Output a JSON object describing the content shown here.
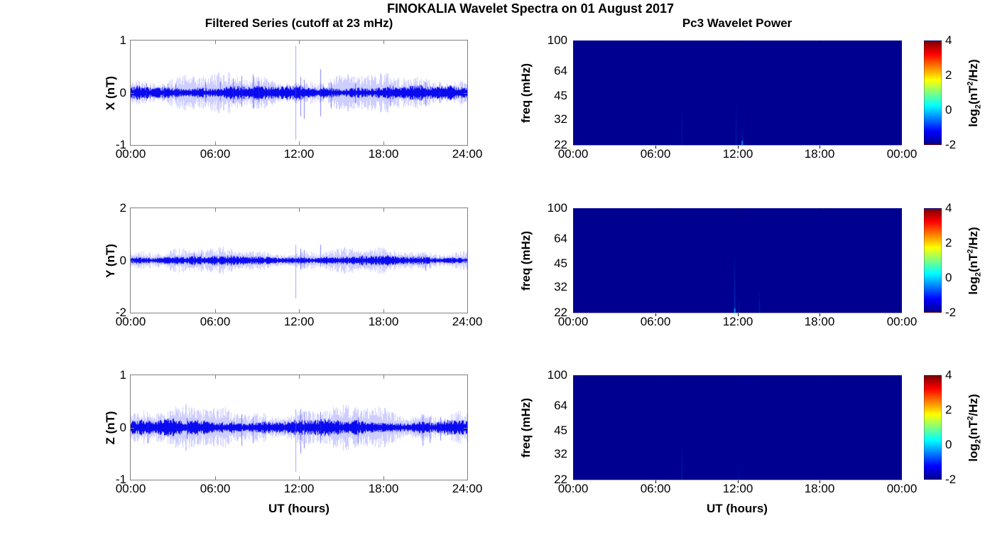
{
  "figure": {
    "main_title": "FINOKALIA Wavelet Spectra on 01 August 2017",
    "left_title": "Filtered Series (cutoff at 23 mHz)",
    "right_title": "Pc3 Wavelet Power",
    "xlabel": "UT (hours)",
    "colors": {
      "background": "#ffffff",
      "axis_box": "#808080",
      "series_line": "#0000ee",
      "spectrogram_base": "#000090",
      "jet_stops": [
        [
          "0%",
          "#000090"
        ],
        [
          "12.5%",
          "#0000ff"
        ],
        [
          "37.5%",
          "#00ffff"
        ],
        [
          "62.5%",
          "#ffff00"
        ],
        [
          "87.5%",
          "#ff0000"
        ],
        [
          "100%",
          "#800000"
        ]
      ]
    }
  },
  "chart_data": [
    {
      "type": "line",
      "component": "X",
      "title": "Filtered Series (cutoff at 23 mHz)",
      "ylabel": "X (nT)",
      "xlabel": "UT (hours)",
      "ylim": [
        -1,
        1
      ],
      "yticks": [
        1,
        0,
        -1
      ],
      "x_tick_labels": [
        "00:00",
        "06:00",
        "12:00",
        "18:00",
        "24:00"
      ],
      "x_range_hours": [
        0,
        24
      ],
      "noise_band_nT": 0.09,
      "spikes_t_up_down": [
        [
          1.1,
          0.18,
          -0.15
        ],
        [
          2.4,
          0.14,
          -0.14
        ],
        [
          3.2,
          0.15,
          -0.12
        ],
        [
          5.3,
          0.2,
          -0.18
        ],
        [
          6.4,
          0.22,
          -0.15
        ],
        [
          7.3,
          0.27,
          -0.2
        ],
        [
          7.9,
          0.32,
          -0.27
        ],
        [
          8.7,
          0.35,
          -0.3
        ],
        [
          9.1,
          0.22,
          -0.18
        ],
        [
          9.8,
          0.2,
          -0.15
        ],
        [
          11.75,
          0.9,
          -0.9
        ],
        [
          12.1,
          0.3,
          -0.45
        ],
        [
          12.35,
          0.25,
          -0.5
        ],
        [
          13.5,
          0.45,
          -0.45
        ],
        [
          14.3,
          0.2,
          -0.3
        ],
        [
          16.0,
          0.18,
          -0.2
        ],
        [
          18.5,
          0.15,
          -0.25
        ],
        [
          21.0,
          0.2,
          -0.25
        ],
        [
          22.0,
          0.2,
          -0.2
        ]
      ]
    },
    {
      "type": "line",
      "component": "Y",
      "title": "Filtered Series (cutoff at 23 mHz)",
      "ylabel": "Y (nT)",
      "xlabel": "UT (hours)",
      "ylim": [
        -2,
        2
      ],
      "yticks": [
        2,
        0,
        -2
      ],
      "x_tick_labels": [
        "00:00",
        "06:00",
        "12:00",
        "18:00",
        "24:00"
      ],
      "x_range_hours": [
        0,
        24
      ],
      "noise_band_nT": 0.12,
      "spikes_t_up_down": [
        [
          4.5,
          0.3,
          -0.2
        ],
        [
          5.0,
          0.25,
          -0.15
        ],
        [
          8.0,
          0.2,
          -0.2
        ],
        [
          11.75,
          0.6,
          -1.45
        ],
        [
          12.1,
          0.45,
          -0.35
        ],
        [
          12.35,
          0.4,
          -0.3
        ],
        [
          13.5,
          0.6,
          -0.25
        ],
        [
          16.5,
          0.2,
          -0.2
        ],
        [
          21.0,
          0.2,
          -0.4
        ],
        [
          21.3,
          0.15,
          -0.3
        ]
      ]
    },
    {
      "type": "line",
      "component": "Z",
      "title": "Filtered Series (cutoff at 23 mHz)",
      "ylabel": "Z (nT)",
      "xlabel": "UT (hours)",
      "ylim": [
        -1,
        1
      ],
      "yticks": [
        1,
        0,
        -1
      ],
      "x_tick_labels": [
        "00:00",
        "06:00",
        "12:00",
        "18:00",
        "24:00"
      ],
      "x_range_hours": [
        0,
        24
      ],
      "noise_band_nT": 0.1,
      "spikes_t_up_down": [
        [
          1.2,
          0.2,
          -0.3
        ],
        [
          4.0,
          0.18,
          -0.22
        ],
        [
          7.9,
          0.25,
          -0.35
        ],
        [
          8.7,
          0.2,
          -0.3
        ],
        [
          11.75,
          0.35,
          -0.85
        ],
        [
          12.1,
          0.35,
          -0.5
        ],
        [
          12.35,
          0.3,
          -0.4
        ],
        [
          13.5,
          0.3,
          -0.3
        ],
        [
          16.2,
          0.2,
          -0.3
        ],
        [
          20.8,
          0.25,
          -0.35
        ],
        [
          21.3,
          0.2,
          -0.3
        ],
        [
          22.1,
          0.2,
          -0.25
        ]
      ]
    },
    {
      "type": "heatmap",
      "component": "X",
      "title": "Pc3 Wavelet Power",
      "ylabel": "freq (mHz)",
      "xlabel": "UT (hours)",
      "y_scale": "log",
      "ylim_mHz": [
        22,
        100
      ],
      "yticks": [
        100,
        64,
        45,
        32,
        22
      ],
      "x_tick_labels": [
        "00:00",
        "06:00",
        "12:00",
        "18:00",
        "00:00"
      ],
      "x_range_hours": [
        0,
        24
      ],
      "background_log2_power": -2,
      "colorbar": {
        "label": "log2(nT^2/Hz)",
        "label_parts": {
          "pre": "log",
          "sub": "2",
          "mid": "(nT",
          "sup": "2",
          "post": "/Hz)"
        },
        "ticks": [
          4,
          2,
          0,
          -2
        ],
        "range": [
          -2,
          4
        ],
        "colormap": "jet"
      },
      "enhancements": [
        {
          "t_hours": 7.95,
          "f_top_mHz": 40,
          "intensity": 0.22,
          "bright_base": false
        },
        {
          "t_hours": 11.9,
          "f_top_mHz": 45,
          "intensity": 0.25,
          "bright_base": false
        },
        {
          "t_hours": 12.35,
          "f_top_mHz": 30,
          "intensity": 0.3,
          "bright_base": true
        }
      ]
    },
    {
      "type": "heatmap",
      "component": "Y",
      "title": "Pc3 Wavelet Power",
      "ylabel": "freq (mHz)",
      "xlabel": "UT (hours)",
      "y_scale": "log",
      "ylim_mHz": [
        22,
        100
      ],
      "yticks": [
        100,
        64,
        45,
        32,
        22
      ],
      "x_tick_labels": [
        "00:00",
        "06:00",
        "12:00",
        "18:00",
        "00:00"
      ],
      "x_range_hours": [
        0,
        24
      ],
      "background_log2_power": -2,
      "colorbar": {
        "label": "log2(nT^2/Hz)",
        "label_parts": {
          "pre": "log",
          "sub": "2",
          "mid": "(nT",
          "sup": "2",
          "post": "/Hz)"
        },
        "ticks": [
          4,
          2,
          0,
          -2
        ],
        "range": [
          -2,
          4
        ],
        "colormap": "jet"
      },
      "enhancements": [
        {
          "t_hours": 11.8,
          "f_top_mHz": 55,
          "intensity": 0.45,
          "bright_base": true
        },
        {
          "t_hours": 12.1,
          "f_top_mHz": 28,
          "intensity": 0.2,
          "bright_base": false
        },
        {
          "t_hours": 13.6,
          "f_top_mHz": 32,
          "intensity": 0.3,
          "bright_base": false
        }
      ]
    },
    {
      "type": "heatmap",
      "component": "Z",
      "title": "Pc3 Wavelet Power",
      "ylabel": "freq (mHz)",
      "xlabel": "UT (hours)",
      "y_scale": "log",
      "ylim_mHz": [
        22,
        100
      ],
      "yticks": [
        100,
        64,
        45,
        32,
        22
      ],
      "x_tick_labels": [
        "00:00",
        "06:00",
        "12:00",
        "18:00",
        "00:00"
      ],
      "x_range_hours": [
        0,
        24
      ],
      "background_log2_power": -2,
      "colorbar": {
        "label": "log2(nT^2/Hz)",
        "label_parts": {
          "pre": "log",
          "sub": "2",
          "mid": "(nT",
          "sup": "2",
          "post": "/Hz)"
        },
        "ticks": [
          4,
          2,
          0,
          -2
        ],
        "range": [
          -2,
          4
        ],
        "colormap": "jet"
      },
      "enhancements": [
        {
          "t_hours": 7.95,
          "f_top_mHz": 38,
          "intensity": 0.28,
          "bright_base": false
        },
        {
          "t_hours": 12.1,
          "f_top_mHz": 28,
          "intensity": 0.18,
          "bright_base": false
        }
      ]
    }
  ]
}
